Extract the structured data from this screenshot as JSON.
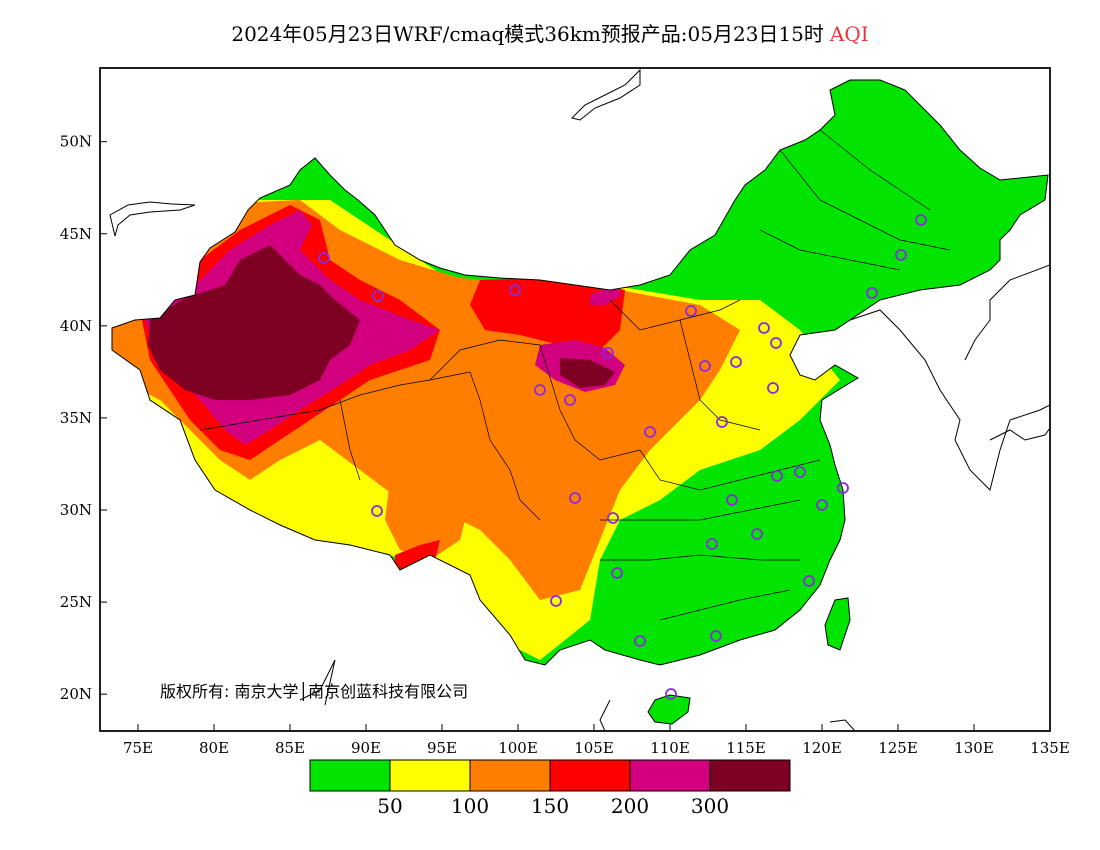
{
  "header": {
    "title": "2024年05月23日WRF/cmaq模式36km预报产品:05月23日15时",
    "variable": "AQI"
  },
  "axes": {
    "x_ticks": [
      "75E",
      "80E",
      "85E",
      "90E",
      "95E",
      "100E",
      "105E",
      "110E",
      "115E",
      "120E",
      "125E",
      "130E",
      "135E"
    ],
    "y_ticks": [
      "20N",
      "25N",
      "30N",
      "35N",
      "40N",
      "45N",
      "50N"
    ],
    "lon_range": [
      72.5,
      135
    ],
    "lat_range": [
      18,
      54
    ]
  },
  "legend": {
    "colors": [
      "#00e400",
      "#ffff00",
      "#ff7e00",
      "#ff0000",
      "#d2007f",
      "#7e0023"
    ],
    "labels": [
      "50",
      "100",
      "150",
      "200",
      "300"
    ]
  },
  "copyright": "版权所有: 南京大学│南京创蓝科技有限公司",
  "colors": {
    "good": "#00e400",
    "moderate": "#ffff00",
    "usg": "#ff7e00",
    "unhealthy": "#ff0000",
    "very_unhealthy": "#d2007f",
    "hazardous": "#7e0023",
    "station": "#8a2be2"
  }
}
